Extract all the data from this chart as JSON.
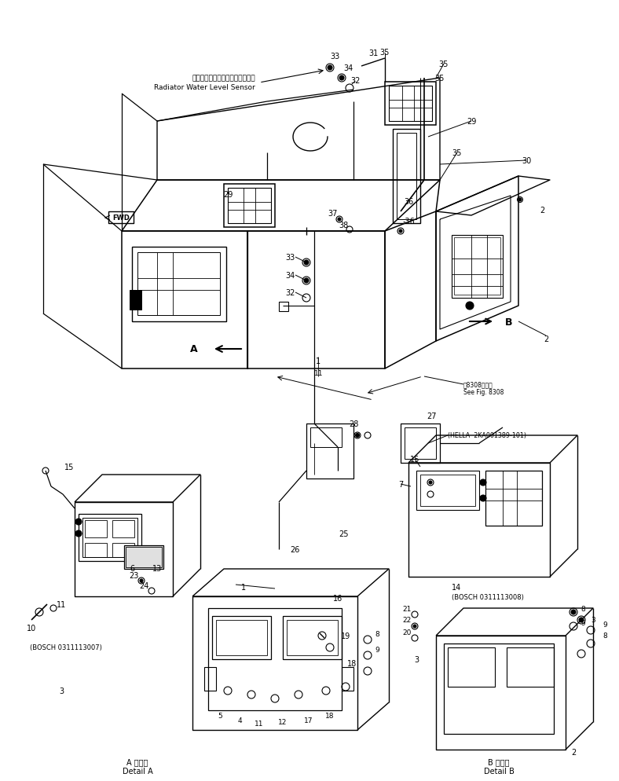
{
  "bg_color": "#ffffff",
  "line_color": "#000000",
  "fig_width": 7.88,
  "fig_height": 9.95,
  "dpi": 100,
  "labels": {
    "radiator_jp": "ラジエータウォータレベルセンサ",
    "radiator_en": "Radiator Water Level Sensor",
    "see_fig_jp": "第8308図参照",
    "see_fig_en": "See Fig. 8308",
    "hella": "(HELLA  2KA001389-101)",
    "bosch_a": "(BOSCH 0311113007)",
    "bosch_b": "(BOSCH 0311113008)",
    "detail_a_jp": "A 詳細図",
    "detail_a_en": "Detail A",
    "detail_b_jp": "B 詳細図",
    "detail_b_en": "Detail B"
  }
}
